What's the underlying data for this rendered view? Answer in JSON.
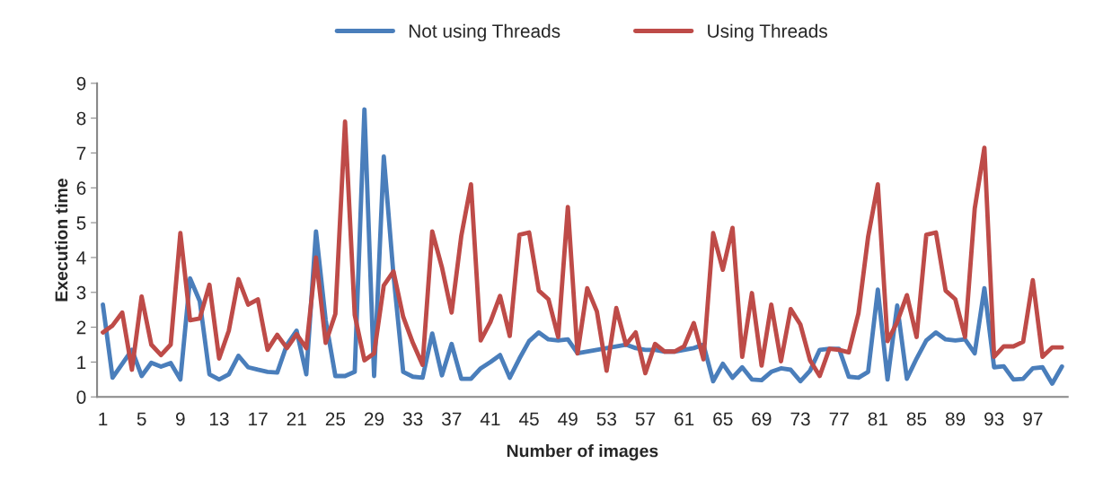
{
  "chart_data": {
    "type": "line",
    "xlabel": "Number of images",
    "ylabel": "Execution time",
    "categories": [
      "1",
      null,
      null,
      null,
      "5",
      null,
      null,
      null,
      "9",
      null,
      null,
      null,
      "13",
      null,
      null,
      null,
      "17",
      null,
      null,
      null,
      "21",
      null,
      null,
      null,
      "25",
      null,
      null,
      null,
      "29",
      null,
      null,
      null,
      "33",
      null,
      null,
      null,
      "37",
      null,
      null,
      null,
      "41",
      null,
      null,
      null,
      "45",
      null,
      null,
      null,
      "49",
      null,
      null,
      null,
      "53",
      null,
      null,
      null,
      "57",
      null,
      null,
      null,
      "61",
      null,
      null,
      null,
      "65",
      null,
      null,
      null,
      "69",
      null,
      null,
      null,
      "73",
      null,
      null,
      null,
      "77",
      null,
      null,
      null,
      "81",
      null,
      null,
      null,
      "85",
      null,
      null,
      null,
      "89",
      null,
      null,
      null,
      "93",
      null,
      null,
      null,
      "97",
      null,
      null,
      null
    ],
    "series": [
      {
        "name": "Not using Threads",
        "color": "#4a7ebb",
        "values": [
          2.65,
          0.55,
          0.95,
          1.35,
          0.6,
          0.98,
          0.87,
          0.97,
          0.5,
          3.4,
          2.75,
          0.65,
          0.5,
          0.65,
          1.18,
          0.85,
          0.78,
          0.72,
          0.7,
          1.5,
          1.9,
          0.65,
          4.75,
          2.2,
          0.6,
          0.6,
          0.72,
          8.25,
          0.6,
          6.9,
          3.5,
          0.72,
          0.58,
          0.55,
          1.82,
          0.62,
          1.52,
          0.52,
          0.52,
          0.82,
          1.0,
          1.2,
          0.55,
          1.1,
          1.6,
          1.85,
          1.65,
          1.62,
          1.65,
          1.25,
          null,
          null,
          null,
          null,
          1.5,
          1.4,
          1.35,
          1.35,
          1.3,
          1.3,
          1.35,
          1.4,
          1.5,
          0.45,
          0.95,
          0.55,
          0.85,
          0.5,
          0.48,
          0.72,
          0.82,
          0.78,
          0.45,
          0.75,
          1.35,
          1.38,
          1.38,
          0.58,
          0.55,
          0.72,
          3.08,
          0.5,
          2.62,
          0.52,
          1.1,
          1.62,
          1.85,
          1.65,
          1.62,
          1.65,
          1.25,
          3.12,
          0.85,
          0.88,
          0.5,
          0.52,
          0.82,
          0.85,
          0.38,
          0.87
        ]
      },
      {
        "name": "Using Threads",
        "color": "#be4b48",
        "values": [
          1.85,
          2.05,
          2.42,
          0.78,
          2.88,
          1.5,
          1.2,
          1.5,
          4.7,
          2.2,
          2.25,
          3.22,
          1.1,
          1.9,
          3.38,
          2.65,
          2.8,
          1.35,
          1.78,
          1.4,
          1.8,
          1.4,
          4.0,
          1.55,
          2.38,
          7.9,
          2.35,
          1.05,
          1.25,
          3.2,
          3.6,
          2.3,
          1.55,
          0.92,
          4.75,
          3.72,
          2.42,
          4.62,
          6.1,
          1.62,
          2.15,
          2.9,
          1.75,
          4.65,
          4.72,
          3.05,
          2.8,
          1.72,
          5.45,
          1.25,
          3.12,
          2.45,
          0.75,
          2.55,
          1.5,
          1.85,
          0.68,
          1.52,
          1.3,
          1.3,
          1.45,
          2.12,
          1.08,
          4.7,
          3.65,
          4.85,
          1.15,
          2.98,
          0.9,
          2.65,
          1.02,
          2.52,
          2.08,
          1.05,
          0.6,
          1.38,
          1.35,
          1.28,
          2.4,
          4.6,
          6.1,
          1.6,
          2.15,
          2.92,
          1.72,
          4.65,
          4.72,
          3.05,
          2.8,
          1.72,
          5.4,
          7.15,
          1.15,
          1.45,
          1.45,
          1.58,
          3.35,
          1.15,
          1.42,
          1.42
        ]
      }
    ],
    "ylim": [
      0,
      9
    ],
    "yticks": [
      0,
      1,
      2,
      3,
      4,
      5,
      6,
      7,
      8,
      9
    ],
    "grid": false,
    "legend": "top",
    "marker": "none",
    "line_style": "solid"
  }
}
